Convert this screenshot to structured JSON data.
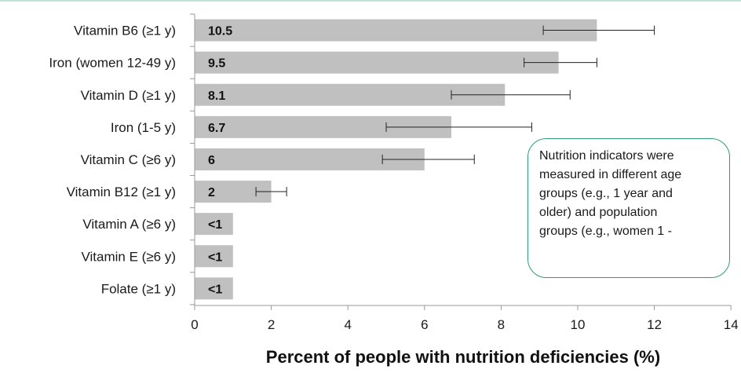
{
  "chart_data": {
    "type": "bar",
    "orientation": "horizontal",
    "categories": [
      "Vitamin B6 (≥1 y)",
      "Iron (women 12-49 y)",
      "Vitamin D (≥1 y)",
      "Iron (1-5 y)",
      "Vitamin C (≥6 y)",
      "Vitamin B12 (≥1 y)",
      "Vitamin A (≥6 y)",
      "Vitamin E (≥6 y)",
      "Folate (≥1 y)"
    ],
    "values": [
      10.5,
      9.5,
      8.1,
      6.7,
      6.0,
      2.0,
      1.0,
      1.0,
      1.0
    ],
    "value_labels": [
      "10.5",
      "9.5",
      "8.1",
      "6.7",
      "6",
      "2",
      "<1",
      "<1",
      "<1"
    ],
    "error_low": [
      9.1,
      8.6,
      6.7,
      5.0,
      4.9,
      1.6,
      null,
      null,
      null
    ],
    "error_high": [
      12.0,
      10.5,
      9.8,
      8.8,
      7.3,
      2.4,
      null,
      null,
      null
    ],
    "xlabel": "Percent of people with nutrition deficiencies (%)",
    "xlim": [
      0,
      14
    ],
    "xticks": [
      "0",
      "2",
      "4",
      "6",
      "8",
      "10",
      "12",
      "14"
    ],
    "grid": false,
    "bar_color": "#c0c0c0",
    "annotation": "Nutrition indicators were\nmeasured in different age\ngroups (e.g., 1 year and\nolder) and population\ngroups (e.g., women 1  -"
  }
}
